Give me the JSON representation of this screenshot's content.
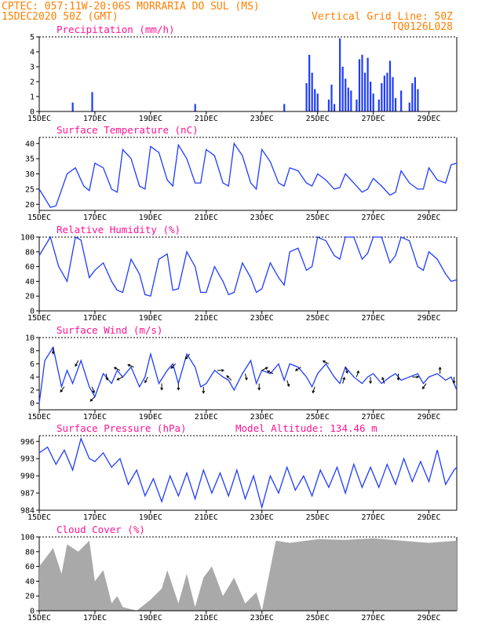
{
  "header": {
    "line1": "CPTEC:  057:11W-20:06S  MORRARIA DO SUL (MS)",
    "line2_left": "15DEC2020 50Z (GMT)",
    "line2_right": "Vertical Grid Line: 50Z",
    "line3_right": "TQ0126L028"
  },
  "x_axis": {
    "tick_labels": [
      "15DEC",
      "17DEC",
      "19DEC",
      "21DEC",
      "23DEC",
      "25DEC",
      "27DEC",
      "29DEC"
    ],
    "range_days": [
      15,
      30
    ]
  },
  "colors": {
    "header": "#ff7f00",
    "panel_title": "#ff1493",
    "series": "#1f3cff",
    "cloud": "#a9a9a9",
    "arrow": "#000000"
  },
  "chart_data": [
    {
      "type": "bar",
      "title": "Precipitation (mm/h)",
      "ylim": [
        0,
        5
      ],
      "yticks": [
        "0",
        "1",
        "2",
        "3",
        "4",
        "5"
      ],
      "x": [
        16.2,
        16.9,
        20.6,
        23.8,
        24.6,
        24.7,
        24.8,
        24.9,
        25.0,
        25.4,
        25.5,
        25.6,
        25.8,
        25.9,
        26.0,
        26.1,
        26.2,
        26.4,
        26.5,
        26.6,
        26.7,
        26.8,
        26.9,
        27.0,
        27.2,
        27.3,
        27.4,
        27.5,
        27.6,
        27.7,
        27.8,
        28.0,
        28.3,
        28.4,
        28.5,
        28.6
      ],
      "values": [
        0.6,
        1.3,
        0.5,
        0.5,
        1.9,
        3.8,
        2.6,
        1.5,
        1.2,
        0.8,
        1.8,
        0.5,
        4.9,
        3.0,
        2.2,
        1.6,
        1.4,
        0.8,
        3.5,
        3.8,
        2.6,
        3.6,
        2.0,
        1.2,
        0.8,
        1.9,
        2.4,
        2.6,
        3.4,
        2.3,
        0.9,
        1.4,
        0.6,
        1.9,
        2.3,
        1.5
      ]
    },
    {
      "type": "line",
      "title": "Surface Temperature (nC)",
      "ylim": [
        18,
        42
      ],
      "yticks": [
        "20",
        "25",
        "30",
        "35",
        "40"
      ],
      "x": [
        15.0,
        15.4,
        15.6,
        16.0,
        16.3,
        16.6,
        16.8,
        17.0,
        17.3,
        17.6,
        17.8,
        18.0,
        18.3,
        18.6,
        18.8,
        19.0,
        19.3,
        19.6,
        19.8,
        20.0,
        20.3,
        20.6,
        20.8,
        21.0,
        21.3,
        21.6,
        21.8,
        22.0,
        22.3,
        22.6,
        22.8,
        23.0,
        23.3,
        23.6,
        23.8,
        24.0,
        24.3,
        24.6,
        24.8,
        25.0,
        25.3,
        25.6,
        25.8,
        26.0,
        26.3,
        26.6,
        26.8,
        27.0,
        27.3,
        27.6,
        27.8,
        28.0,
        28.3,
        28.6,
        28.8,
        29.0,
        29.3,
        29.6,
        29.8,
        30.0
      ],
      "values": [
        25.0,
        19.0,
        19.5,
        30.0,
        32.0,
        26.0,
        24.5,
        33.5,
        32.0,
        25.0,
        24.0,
        38.0,
        35.0,
        26.0,
        25.0,
        39.0,
        37.0,
        28.0,
        26.0,
        39.5,
        35.0,
        27.0,
        27.0,
        38.0,
        36.0,
        27.0,
        26.0,
        40.0,
        36.0,
        27.0,
        25.0,
        38.0,
        34.0,
        27.0,
        26.0,
        32.0,
        31.0,
        27.0,
        26.0,
        30.0,
        28.0,
        25.0,
        25.5,
        30.0,
        27.0,
        24.0,
        25.0,
        28.5,
        26.0,
        23.0,
        24.0,
        31.0,
        27.0,
        25.0,
        25.0,
        32.0,
        28.0,
        27.0,
        33.0,
        33.5
      ]
    },
    {
      "type": "line",
      "title": "Relative Humidity (%)",
      "ylim": [
        0,
        100
      ],
      "yticks": [
        "0",
        "20",
        "40",
        "60",
        "80",
        "100"
      ],
      "x": [
        15.0,
        15.4,
        15.7,
        16.0,
        16.3,
        16.5,
        16.8,
        17.0,
        17.3,
        17.6,
        17.8,
        18.0,
        18.3,
        18.6,
        18.8,
        19.0,
        19.3,
        19.6,
        19.8,
        20.0,
        20.3,
        20.6,
        20.8,
        21.0,
        21.3,
        21.6,
        21.8,
        22.0,
        22.3,
        22.6,
        22.8,
        23.0,
        23.3,
        23.6,
        23.8,
        24.0,
        24.3,
        24.6,
        24.8,
        25.0,
        25.3,
        25.6,
        25.8,
        26.0,
        26.3,
        26.6,
        26.8,
        27.0,
        27.3,
        27.6,
        27.8,
        28.0,
        28.3,
        28.6,
        28.8,
        29.0,
        29.3,
        29.6,
        29.8,
        30.0
      ],
      "values": [
        75.0,
        100.0,
        60.0,
        40.0,
        100.0,
        96.0,
        45.0,
        55.0,
        65.0,
        40.0,
        28.0,
        25.0,
        70.0,
        50.0,
        22.0,
        20.0,
        70.0,
        77.0,
        28.0,
        30.0,
        80.0,
        60.0,
        25.0,
        25.0,
        60.0,
        40.0,
        22.0,
        25.0,
        65.0,
        45.0,
        25.0,
        30.0,
        65.0,
        45.0,
        35.0,
        80.0,
        85.0,
        55.0,
        60.0,
        100.0,
        95.0,
        75.0,
        70.0,
        100.0,
        100.0,
        70.0,
        78.0,
        100.0,
        100.0,
        65.0,
        75.0,
        100.0,
        95.0,
        60.0,
        55.0,
        80.0,
        70.0,
        50.0,
        40.0,
        42.0
      ]
    },
    {
      "type": "line",
      "title": "Surface Wind (m/s)",
      "ylim": [
        -1,
        10
      ],
      "yticks": [
        "0",
        "2",
        "4",
        "6",
        "8",
        "10"
      ],
      "x": [
        15.0,
        15.2,
        15.5,
        15.8,
        16.0,
        16.2,
        16.5,
        16.8,
        17.0,
        17.3,
        17.6,
        17.8,
        18.0,
        18.3,
        18.6,
        18.8,
        19.0,
        19.3,
        19.6,
        19.8,
        20.0,
        20.3,
        20.6,
        20.8,
        21.0,
        21.3,
        21.6,
        21.8,
        22.0,
        22.3,
        22.6,
        22.8,
        23.0,
        23.3,
        23.6,
        23.8,
        24.0,
        24.3,
        24.6,
        24.8,
        25.0,
        25.3,
        25.6,
        25.8,
        26.0,
        26.3,
        26.6,
        26.8,
        27.0,
        27.3,
        27.6,
        27.8,
        28.0,
        28.3,
        28.6,
        28.8,
        29.0,
        29.3,
        29.6,
        29.8,
        30.0
      ],
      "values": [
        0.0,
        6.5,
        8.5,
        2.5,
        5.0,
        3.0,
        6.5,
        2.5,
        1.0,
        4.5,
        3.0,
        5.0,
        4.0,
        5.5,
        2.5,
        4.0,
        7.5,
        3.0,
        5.0,
        6.0,
        3.0,
        7.5,
        5.5,
        2.5,
        3.0,
        5.0,
        4.0,
        3.5,
        2.0,
        4.5,
        6.5,
        3.0,
        5.0,
        4.5,
        6.0,
        3.5,
        6.0,
        5.5,
        4.0,
        2.5,
        4.5,
        6.0,
        4.0,
        3.0,
        5.5,
        4.0,
        3.0,
        4.0,
        4.5,
        3.0,
        4.0,
        4.5,
        3.5,
        4.0,
        4.5,
        3.0,
        4.0,
        4.5,
        3.5,
        4.0,
        2.0
      ],
      "arrows_u": [
        0.0,
        -1.5,
        -1.0,
        0.5,
        0.3,
        -1.0,
        -2.5,
        -1.0,
        0.0,
        -1.5,
        -0.8,
        0.0,
        1.5,
        -1.0,
        0.5,
        0.0,
        -1.0,
        0.5,
        -1.5,
        -0.5,
        -1.0,
        0.3,
        0.5,
        0.0,
        -0.5,
        0.0,
        1.5,
        -1.0,
        0.0,
        0.0,
        -1.0,
        -1.0,
        0.0,
        1.0,
        0.5
      ],
      "arrows_v": [
        -2.0,
        -2.0,
        -2.0,
        -1.5,
        -1.5,
        0.5,
        1.0,
        -2.0,
        -1.5,
        -1.5,
        -1.0,
        -2.0,
        0.0,
        1.0,
        -2.0,
        -1.5,
        0.5,
        -1.5,
        -1.0,
        -1.5,
        0.5,
        1.0,
        1.5,
        -1.5,
        1.5,
        -2.0,
        0.0,
        -1.5,
        0.5,
        -2.0,
        -1.0,
        -0.5,
        -1.5,
        0.5,
        -1.5
      ],
      "arrows_x": [
        15.5,
        15.9,
        16.4,
        16.9,
        17.4,
        17.9,
        18.4,
        18.9,
        19.4,
        19.9,
        20.4,
        20.9,
        21.4,
        21.9,
        22.4,
        22.9,
        23.4,
        23.9,
        24.4,
        24.9,
        25.4,
        25.9,
        26.4,
        26.9,
        27.4,
        27.9,
        28.4,
        28.9,
        29.4,
        29.9,
        17.0,
        18.0,
        20.0,
        23.0,
        26.0
      ]
    },
    {
      "type": "line",
      "title": "Surface Pressure (hPa)",
      "annotation": "Model Altitude: 134.46 m",
      "ylim": [
        984,
        997
      ],
      "yticks": [
        "984",
        "987",
        "990",
        "993",
        "996"
      ],
      "x": [
        15.0,
        15.3,
        15.6,
        15.9,
        16.2,
        16.5,
        16.8,
        17.0,
        17.3,
        17.6,
        17.9,
        18.2,
        18.5,
        18.8,
        19.1,
        19.4,
        19.7,
        20.0,
        20.3,
        20.6,
        20.9,
        21.2,
        21.5,
        21.8,
        22.1,
        22.4,
        22.7,
        23.0,
        23.3,
        23.6,
        23.9,
        24.2,
        24.5,
        24.8,
        25.1,
        25.4,
        25.7,
        26.0,
        26.3,
        26.6,
        26.9,
        27.2,
        27.5,
        27.8,
        28.1,
        28.4,
        28.7,
        29.0,
        29.3,
        29.6,
        29.9,
        30.0
      ],
      "values": [
        994.0,
        995.0,
        992.0,
        994.5,
        991.0,
        996.5,
        993.0,
        992.5,
        994.0,
        991.5,
        993.0,
        988.5,
        991.0,
        986.5,
        989.5,
        985.5,
        990.0,
        986.5,
        990.5,
        986.0,
        991.0,
        987.0,
        990.5,
        986.5,
        991.0,
        986.0,
        990.0,
        984.5,
        990.0,
        987.0,
        991.5,
        987.5,
        990.0,
        986.5,
        991.0,
        988.0,
        991.5,
        987.0,
        992.0,
        988.0,
        991.5,
        988.0,
        992.0,
        988.5,
        993.0,
        989.0,
        992.5,
        989.0,
        994.5,
        988.5,
        991.0,
        991.5
      ]
    },
    {
      "type": "area",
      "title": "Cloud Cover (%)",
      "ylim": [
        0,
        100
      ],
      "yticks": [
        "0",
        "20",
        "40",
        "60",
        "80",
        "100"
      ],
      "x": [
        15.0,
        15.5,
        15.8,
        16.0,
        16.4,
        16.8,
        17.0,
        17.3,
        17.6,
        17.8,
        18.0,
        18.5,
        19.0,
        19.4,
        19.6,
        20.0,
        20.3,
        20.6,
        20.9,
        21.2,
        21.6,
        22.0,
        22.4,
        22.8,
        23.0,
        23.5,
        24.0,
        25.0,
        26.0,
        27.0,
        28.0,
        29.0,
        30.0
      ],
      "values": [
        60.0,
        85.0,
        50.0,
        90.0,
        80.0,
        95.0,
        40.0,
        55.0,
        10.0,
        20.0,
        5.0,
        0.0,
        15.0,
        30.0,
        55.0,
        10.0,
        50.0,
        5.0,
        45.0,
        60.0,
        20.0,
        45.0,
        10.0,
        25.0,
        0.0,
        95.0,
        92.0,
        97.0,
        96.0,
        98.0,
        95.0,
        92.0,
        95.0
      ]
    }
  ]
}
